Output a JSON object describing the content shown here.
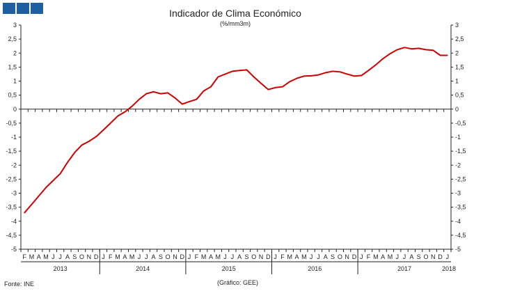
{
  "header": {
    "logo_icon": "ine-logo-icon"
  },
  "footer": {
    "source": "Fonte: INE",
    "credit": "(Gráfico: GEE)"
  },
  "chart_data": {
    "type": "line",
    "title": "Indicador de Clima Económico",
    "subtitle": "(%/mm3m)",
    "xlabel": "",
    "ylabel": "",
    "ylim": [
      -5,
      3
    ],
    "yticks": [
      "3",
      "2,5",
      "2",
      "1,5",
      "1",
      "0,5",
      "0",
      "-0,5",
      "-1",
      "-1,5",
      "-2",
      "-2,5",
      "-3",
      "-3,5",
      "-4",
      "-4,5",
      "-5"
    ],
    "grid": false,
    "month_labels": [
      "F",
      "M",
      "A",
      "M",
      "J",
      "J",
      "A",
      "S",
      "O",
      "N",
      "D",
      "J",
      "F",
      "M",
      "A",
      "M",
      "J",
      "J",
      "A",
      "S",
      "O",
      "N",
      "D",
      "J",
      "F",
      "M",
      "A",
      "M",
      "J",
      "J",
      "A",
      "S",
      "O",
      "N",
      "D",
      "J",
      "F",
      "M",
      "A",
      "M",
      "J",
      "J",
      "A",
      "S",
      "O",
      "N",
      "D",
      "J",
      "F",
      "M",
      "A",
      "M",
      "J",
      "J",
      "A",
      "S",
      "O",
      "N",
      "D",
      "J"
    ],
    "year_labels": [
      "2013",
      "2014",
      "2015",
      "2016",
      "2017",
      "2018"
    ],
    "line_color": "#cc0000",
    "series": [
      {
        "values": [
          -3.7,
          -3.4,
          -3.1,
          -2.8,
          -2.55,
          -2.3,
          -1.9,
          -1.55,
          -1.28,
          -1.15,
          -0.98,
          -0.75,
          -0.5,
          -0.25,
          -0.1,
          0.1,
          0.35,
          0.55,
          0.62,
          0.55,
          0.58,
          0.4,
          0.18,
          0.27,
          0.35,
          0.65,
          0.8,
          1.15,
          1.25,
          1.35,
          1.38,
          1.4,
          1.15,
          0.92,
          0.7,
          0.77,
          0.8,
          0.98,
          1.1,
          1.18,
          1.19,
          1.22,
          1.3,
          1.35,
          1.33,
          1.25,
          1.18,
          1.2,
          1.38,
          1.58,
          1.8,
          1.98,
          2.12,
          2.2,
          2.15,
          2.17,
          2.12,
          2.1,
          1.92,
          1.92
        ]
      }
    ]
  }
}
